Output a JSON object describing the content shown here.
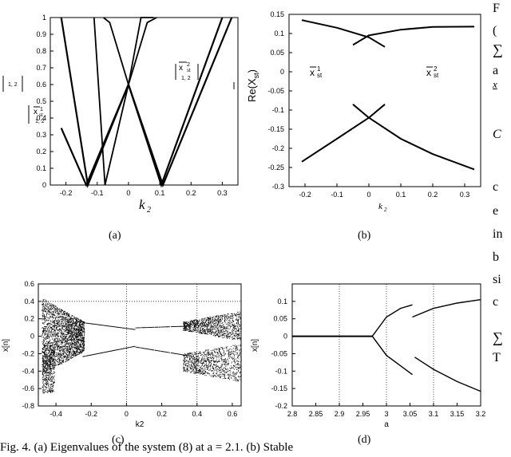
{
  "panels": {
    "a": {
      "caption": "(a)",
      "xlabel": "k",
      "xlabel_sub": "2",
      "ylabel_sub": "1, 2",
      "xticks": [
        "-0.2",
        "-0.1",
        "0",
        "0.1",
        "0.2",
        "0.3"
      ],
      "yticks": [
        "0",
        "0.1",
        "0.2",
        "0.3",
        "0.4",
        "0.5",
        "0.6",
        "0.7",
        "0.8",
        "0.9",
        "1"
      ],
      "label1_main": "x",
      "label1_sup": "1",
      "label1_sub_st": "st",
      "label1_sub": "1, 2",
      "label2_main": "x",
      "label2_sup": "2",
      "label2_sub_st": "st",
      "label2_sub": "1, 2"
    },
    "b": {
      "caption": "(b)",
      "ylabel": "Re(X",
      "ylabel_sub": "st",
      "ylabel_end": ")",
      "xlabel": "k",
      "xlabel_sub": "2",
      "xticks": [
        "-0.2",
        "-0.1",
        "0",
        "0.1",
        "0.2",
        "0.3"
      ],
      "yticks": [
        "0.15",
        "0.1",
        "0.05",
        "0",
        "-0.05",
        "-0.1",
        "-0.15",
        "-0.2",
        "-0.25",
        "-0.3"
      ],
      "label1_main": "x",
      "label1_sup": "1",
      "label1_sub": "st",
      "label2_main": "x",
      "label2_sup": "2",
      "label2_sub": "st"
    },
    "c": {
      "caption": "(c)",
      "ylabel": "x[n]",
      "xlabel": "k2",
      "xticks": [
        "-0.4",
        "-0.2",
        "0",
        "0.2",
        "0.4",
        "0.6"
      ],
      "yticks": [
        "0.6",
        "0.4",
        "0.2",
        "0",
        "-0.2",
        "-0.4",
        "-0.6",
        "-0.8"
      ]
    },
    "d": {
      "caption": "(d)",
      "ylabel": "x[n]",
      "xlabel": "a",
      "xticks": [
        "2.8",
        "2.85",
        "2.9",
        "2.95",
        "3",
        "3.05",
        "3.1",
        "3.15",
        "3.2"
      ],
      "yticks": [
        "0.1",
        "0.05",
        "0",
        "-0.05",
        "-0.1",
        "-0.15",
        "-0.2"
      ]
    }
  },
  "side_text": {
    "l1": "F",
    "l2": "(",
    "l3": "∑",
    "l4": "a",
    "l5": "x",
    "l6": "C",
    "l7": "c",
    "l8": "e",
    "l9": "in",
    "l10": "b",
    "l11": "si",
    "l12": "c",
    "l13": "∑",
    "l14": "T"
  },
  "bottom_caption": "Fig. 4.  (a) Eigenvalues of the system (8) at a = 2.1.  (b) Stable",
  "chart_data": [
    {
      "type": "line",
      "panel": "a",
      "xlabel": "k2",
      "ylabel": "|λ1,2|",
      "xlim": [
        -0.25,
        0.35
      ],
      "ylim": [
        0,
        1
      ],
      "series": [
        {
          "x": [
            -0.215,
            -0.135,
            0.0,
            0.11,
            0.33
          ],
          "y": [
            0.34,
            0.0,
            0.6,
            0.0,
            1.0
          ]
        },
        {
          "x": [
            -0.215,
            -0.13,
            0.0,
            0.105,
            0.3
          ],
          "y": [
            1.0,
            0.0,
            0.6,
            0.0,
            1.0
          ]
        },
        {
          "x": [
            -0.11,
            -0.075,
            0.0,
            0.04,
            0.08
          ],
          "y": [
            1.0,
            0.0,
            0.6,
            1.0,
            1.0
          ]
        },
        {
          "x": [
            -0.08,
            -0.06,
            0.0,
            0.06,
            0.09
          ],
          "y": [
            1.0,
            0.97,
            0.6,
            0.97,
            1.0
          ]
        }
      ]
    },
    {
      "type": "line",
      "panel": "b",
      "xlabel": "k2",
      "ylabel": "Re(Xst)",
      "xlim": [
        -0.25,
        0.35
      ],
      "ylim": [
        -0.3,
        0.15
      ],
      "series": [
        {
          "x": [
            -0.21,
            -0.1,
            0.0,
            0.05
          ],
          "y": [
            0.135,
            0.115,
            0.09,
            0.065
          ]
        },
        {
          "x": [
            -0.05,
            0.0,
            0.1,
            0.2,
            0.33
          ],
          "y": [
            0.07,
            0.095,
            0.11,
            0.117,
            0.118
          ]
        },
        {
          "x": [
            -0.21,
            -0.1,
            0.0,
            0.05
          ],
          "y": [
            -0.235,
            -0.175,
            -0.12,
            -0.085
          ]
        },
        {
          "x": [
            -0.05,
            0.0,
            0.1,
            0.2,
            0.33
          ],
          "y": [
            -0.085,
            -0.12,
            -0.175,
            -0.215,
            -0.255
          ]
        }
      ]
    },
    {
      "type": "scatter",
      "panel": "c",
      "xlabel": "k2",
      "ylabel": "x[n]",
      "xlim": [
        -0.5,
        0.65
      ],
      "ylim": [
        -0.8,
        0.6
      ]
    },
    {
      "type": "scatter",
      "panel": "d",
      "xlabel": "a",
      "ylabel": "x[n]",
      "xlim": [
        2.8,
        3.2
      ],
      "ylim": [
        -0.2,
        0.15
      ],
      "series": [
        {
          "x": [
            2.8,
            2.97
          ],
          "y": [
            0.0,
            0.0
          ]
        },
        {
          "x": [
            2.97,
            3.0,
            3.03,
            3.055
          ],
          "y": [
            0.0,
            0.055,
            0.08,
            0.09
          ]
        },
        {
          "x": [
            2.97,
            3.0,
            3.03,
            3.055
          ],
          "y": [
            0.0,
            -0.055,
            -0.085,
            -0.11
          ]
        },
        {
          "x": [
            3.055,
            3.1,
            3.15,
            3.2
          ],
          "y": [
            0.055,
            0.08,
            0.095,
            0.105
          ]
        },
        {
          "x": [
            3.06,
            3.1,
            3.15,
            3.2
          ],
          "y": [
            -0.06,
            -0.095,
            -0.13,
            -0.158
          ]
        }
      ]
    }
  ]
}
